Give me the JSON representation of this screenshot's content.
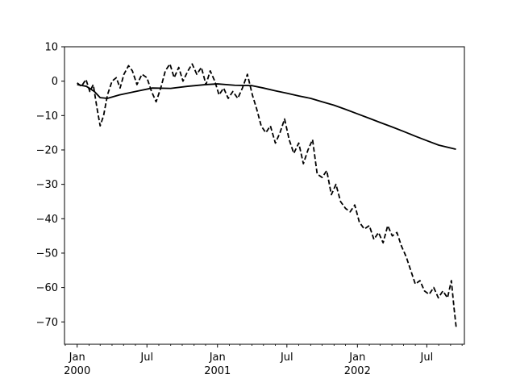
{
  "chart_data": {
    "type": "line",
    "title": "",
    "xlabel": "",
    "ylabel": "",
    "xlim": [
      "1999-11-29",
      "2002-10-07"
    ],
    "ylim": [
      -76.5,
      10
    ],
    "grid": false,
    "legend": "none",
    "y_ticks": [
      10,
      0,
      -10,
      -20,
      -30,
      -40,
      -50,
      -60,
      -70
    ],
    "y_tick_labels": [
      "10",
      "0",
      "−10",
      "−20",
      "−30",
      "−40",
      "−50",
      "−60",
      "−70"
    ],
    "x_major_ticks": [
      {
        "date": "2000-01-01",
        "label": "Jan",
        "year": "2000"
      },
      {
        "date": "2000-07-01",
        "label": "Jul",
        "year": ""
      },
      {
        "date": "2001-01-01",
        "label": "Jan",
        "year": "2001"
      },
      {
        "date": "2001-07-01",
        "label": "Jul",
        "year": ""
      },
      {
        "date": "2002-01-01",
        "label": "Jan",
        "year": "2002"
      },
      {
        "date": "2002-07-01",
        "label": "Jul",
        "year": ""
      }
    ],
    "x_minor_ticks": [
      "1999-12-01",
      "2000-02-01",
      "2000-03-01",
      "2000-04-01",
      "2000-05-01",
      "2000-06-01",
      "2000-08-01",
      "2000-09-01",
      "2000-10-01",
      "2000-11-01",
      "2000-12-01",
      "2001-02-01",
      "2001-03-01",
      "2001-04-01",
      "2001-05-01",
      "2001-06-01",
      "2001-08-01",
      "2001-09-01",
      "2001-10-01",
      "2001-11-01",
      "2001-12-01",
      "2002-02-01",
      "2002-03-01",
      "2002-04-01",
      "2002-05-01",
      "2002-06-01",
      "2002-08-01",
      "2002-09-01",
      "2002-10-01"
    ],
    "series": [
      {
        "style": "dashed",
        "color": "#000000",
        "points": [
          [
            "2000-01-01",
            -0.5
          ],
          [
            "2000-01-12",
            -1.5
          ],
          [
            "2000-01-24",
            0.5
          ],
          [
            "2000-02-03",
            -3
          ],
          [
            "2000-02-12",
            -1
          ],
          [
            "2000-02-22",
            -8
          ],
          [
            "2000-03-01",
            -13
          ],
          [
            "2000-03-10",
            -10
          ],
          [
            "2000-03-20",
            -4
          ],
          [
            "2000-04-01",
            0
          ],
          [
            "2000-04-12",
            1
          ],
          [
            "2000-04-22",
            -2
          ],
          [
            "2000-05-02",
            2
          ],
          [
            "2000-05-14",
            4.5
          ],
          [
            "2000-05-24",
            3
          ],
          [
            "2000-06-05",
            -1
          ],
          [
            "2000-06-18",
            2
          ],
          [
            "2000-07-01",
            1
          ],
          [
            "2000-07-13",
            -3
          ],
          [
            "2000-07-25",
            -6
          ],
          [
            "2000-08-06",
            -2
          ],
          [
            "2000-08-18",
            3
          ],
          [
            "2000-08-30",
            5
          ],
          [
            "2000-09-10",
            1
          ],
          [
            "2000-09-22",
            4
          ],
          [
            "2000-10-03",
            0
          ],
          [
            "2000-10-16",
            3
          ],
          [
            "2000-10-27",
            5
          ],
          [
            "2000-11-08",
            2
          ],
          [
            "2000-11-20",
            4
          ],
          [
            "2000-12-02",
            -1
          ],
          [
            "2000-12-13",
            3
          ],
          [
            "2000-12-25",
            0
          ],
          [
            "2001-01-05",
            -4
          ],
          [
            "2001-01-17",
            -2
          ],
          [
            "2001-01-29",
            -5
          ],
          [
            "2001-02-10",
            -3
          ],
          [
            "2001-02-23",
            -5
          ],
          [
            "2001-03-07",
            -2
          ],
          [
            "2001-03-20",
            2
          ],
          [
            "2001-04-02",
            -4
          ],
          [
            "2001-04-13",
            -8
          ],
          [
            "2001-04-25",
            -13
          ],
          [
            "2001-05-07",
            -15
          ],
          [
            "2001-05-19",
            -13
          ],
          [
            "2001-06-01",
            -18
          ],
          [
            "2001-06-13",
            -15
          ],
          [
            "2001-06-25",
            -11
          ],
          [
            "2001-07-07",
            -17
          ],
          [
            "2001-07-19",
            -21
          ],
          [
            "2001-08-01",
            -18
          ],
          [
            "2001-08-13",
            -24
          ],
          [
            "2001-08-25",
            -20
          ],
          [
            "2001-09-06",
            -17
          ],
          [
            "2001-09-18",
            -27
          ],
          [
            "2001-10-01",
            -28
          ],
          [
            "2001-10-13",
            -26
          ],
          [
            "2001-10-25",
            -33
          ],
          [
            "2001-11-06",
            -30
          ],
          [
            "2001-11-18",
            -35
          ],
          [
            "2001-12-01",
            -37
          ],
          [
            "2001-12-13",
            -38
          ],
          [
            "2001-12-25",
            -36
          ],
          [
            "2002-01-06",
            -41
          ],
          [
            "2002-01-19",
            -43
          ],
          [
            "2002-02-01",
            -42
          ],
          [
            "2002-02-13",
            -46
          ],
          [
            "2002-02-25",
            -44
          ],
          [
            "2002-03-09",
            -47
          ],
          [
            "2002-03-21",
            -42
          ],
          [
            "2002-04-02",
            -45
          ],
          [
            "2002-04-14",
            -44
          ],
          [
            "2002-04-26",
            -48
          ],
          [
            "2002-05-08",
            -51
          ],
          [
            "2002-05-20",
            -55
          ],
          [
            "2002-06-01",
            -59
          ],
          [
            "2002-06-13",
            -58
          ],
          [
            "2002-06-25",
            -61
          ],
          [
            "2002-07-07",
            -62
          ],
          [
            "2002-07-19",
            -60
          ],
          [
            "2002-07-31",
            -63
          ],
          [
            "2002-08-12",
            -61
          ],
          [
            "2002-08-24",
            -63
          ],
          [
            "2002-09-03",
            -58
          ],
          [
            "2002-09-10",
            -66
          ],
          [
            "2002-09-16",
            -72
          ]
        ]
      },
      {
        "style": "solid",
        "color": "#000000",
        "points": [
          [
            "2000-01-01",
            -1
          ],
          [
            "2000-01-25",
            -1.5
          ],
          [
            "2000-02-15",
            -3
          ],
          [
            "2000-03-01",
            -4.8
          ],
          [
            "2000-03-20",
            -5
          ],
          [
            "2000-04-20",
            -4
          ],
          [
            "2000-06-01",
            -3
          ],
          [
            "2000-07-15",
            -2
          ],
          [
            "2000-09-01",
            -2.1
          ],
          [
            "2000-10-15",
            -1.5
          ],
          [
            "2000-12-01",
            -1
          ],
          [
            "2001-01-01",
            -0.8
          ],
          [
            "2001-02-15",
            -1.2
          ],
          [
            "2001-04-01",
            -1.3
          ],
          [
            "2001-05-01",
            -2
          ],
          [
            "2001-06-01",
            -2.8
          ],
          [
            "2001-07-01",
            -3.5
          ],
          [
            "2001-08-01",
            -4.3
          ],
          [
            "2001-09-01",
            -5
          ],
          [
            "2001-10-01",
            -6
          ],
          [
            "2001-11-01",
            -7
          ],
          [
            "2001-12-01",
            -8.2
          ],
          [
            "2002-01-01",
            -9.5
          ],
          [
            "2002-02-01",
            -10.8
          ],
          [
            "2002-03-01",
            -12
          ],
          [
            "2002-04-01",
            -13.3
          ],
          [
            "2002-05-01",
            -14.6
          ],
          [
            "2002-06-01",
            -16
          ],
          [
            "2002-07-01",
            -17.3
          ],
          [
            "2002-08-01",
            -18.6
          ],
          [
            "2002-09-15",
            -19.8
          ]
        ]
      }
    ]
  }
}
